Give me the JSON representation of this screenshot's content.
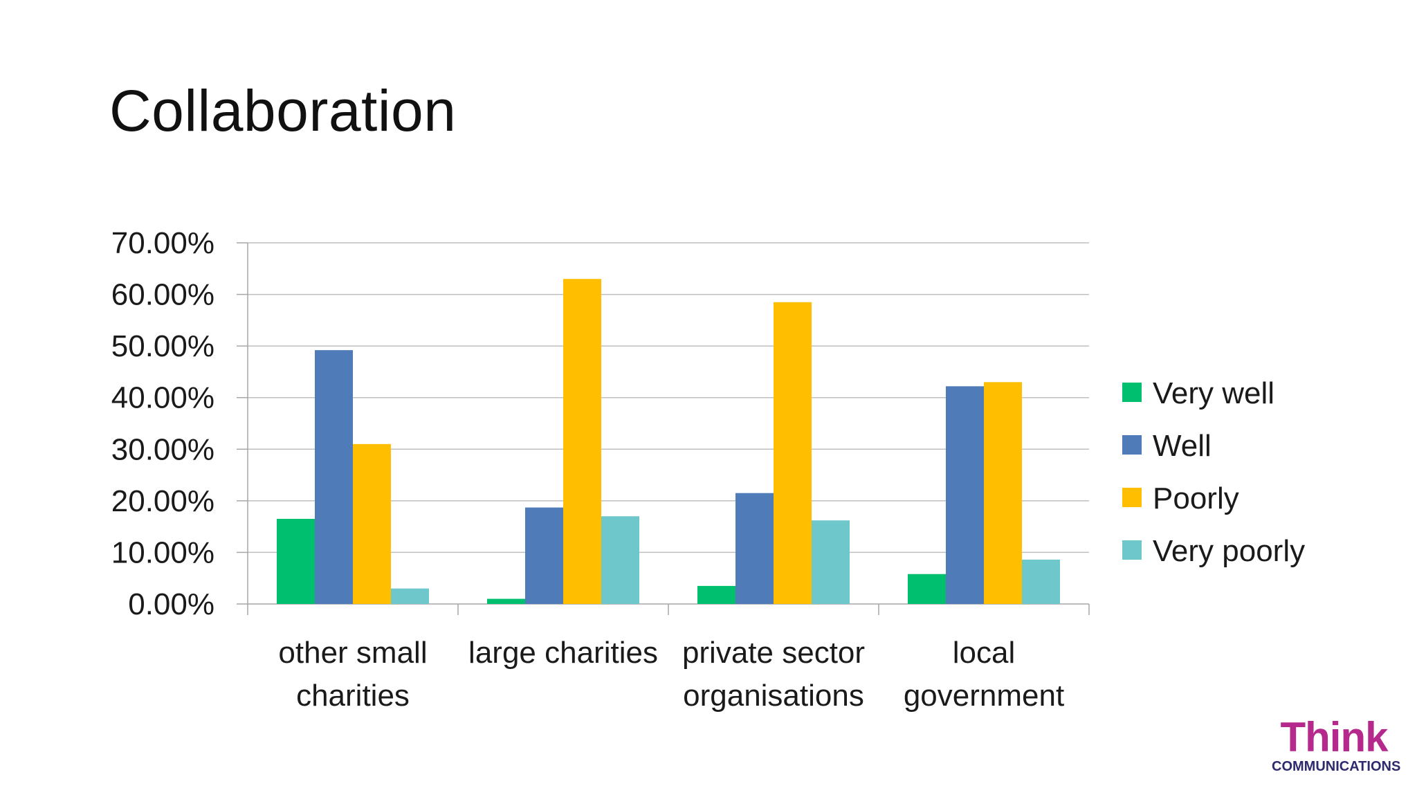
{
  "slide": {
    "title": "Collaboration"
  },
  "chart_data": {
    "type": "bar",
    "categories": [
      [
        "other small",
        "charities"
      ],
      [
        "large charities"
      ],
      [
        "private sector",
        "organisations"
      ],
      [
        "local",
        "government"
      ]
    ],
    "series": [
      {
        "name": "Very well",
        "color": "#00BF6F",
        "values": [
          16.5,
          1.0,
          3.5,
          5.8
        ]
      },
      {
        "name": "Well",
        "color": "#4F7CB9",
        "values": [
          49.2,
          18.7,
          21.5,
          42.2
        ]
      },
      {
        "name": "Poorly",
        "color": "#FFBF00",
        "values": [
          31.0,
          63.0,
          58.5,
          43.0
        ]
      },
      {
        "name": "Very poorly",
        "color": "#6EC7CB",
        "values": [
          3.0,
          17.0,
          16.2,
          8.6
        ]
      }
    ],
    "ylim": [
      0,
      70
    ],
    "yticks": [
      0,
      10,
      20,
      30,
      40,
      50,
      60,
      70
    ],
    "ytick_labels": [
      "0.00%",
      "10.00%",
      "20.00%",
      "30.00%",
      "40.00%",
      "50.00%",
      "60.00%",
      "70.00%"
    ],
    "grid": true,
    "legend": "right"
  },
  "logo": {
    "word": "Think",
    "sub": "COMMUNICATIONS"
  }
}
